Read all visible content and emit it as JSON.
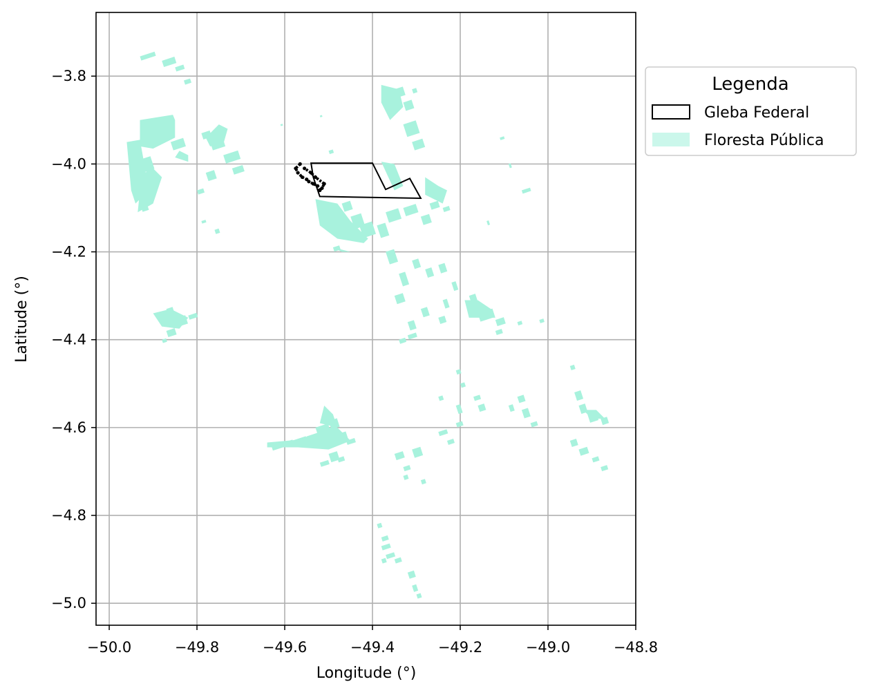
{
  "chart_data": {
    "type": "map",
    "xlabel": "Longitude (°)",
    "ylabel": "Latitude (°)",
    "xlim": [
      -50.03,
      -48.8
    ],
    "ylim": [
      -5.05,
      -3.655
    ],
    "xticks": [
      -50.0,
      -49.8,
      -49.6,
      -49.4,
      -49.2,
      -49.0,
      -48.8
    ],
    "xtick_labels": [
      "−50.0",
      "−49.8",
      "−49.6",
      "−49.4",
      "−49.2",
      "−49.0",
      "−48.8"
    ],
    "yticks": [
      -3.8,
      -4.0,
      -4.2,
      -4.4,
      -4.6,
      -4.8,
      -5.0
    ],
    "ytick_labels": [
      "−3.8",
      "−4.0",
      "−4.2",
      "−4.4",
      "−4.6",
      "−4.8",
      "−5.0"
    ],
    "grid": true,
    "legend": {
      "title": "Legenda",
      "placement": "outside-upper-right",
      "entries": [
        {
          "label": "Gleba Federal",
          "style": "outline",
          "edge_color": "#000000"
        },
        {
          "label": "Floresta Pública",
          "style": "fill",
          "fill_color": "#a8f2dd"
        }
      ]
    },
    "layers": {
      "gleba_federal": {
        "name": "Gleba Federal",
        "polygon": [
          [
            -49.54,
            -3.998
          ],
          [
            -49.4,
            -3.998
          ],
          [
            -49.37,
            -4.058
          ],
          [
            -49.315,
            -4.033
          ],
          [
            -49.3,
            -4.06
          ],
          [
            -49.29,
            -4.078
          ],
          [
            -49.52,
            -4.074
          ],
          [
            -49.535,
            -4.03
          ]
        ],
        "detail_cluster": [
          [
            -49.565,
            -4.0
          ],
          [
            -49.575,
            -4.01
          ],
          [
            -49.57,
            -4.02
          ],
          [
            -49.56,
            -4.03
          ],
          [
            -49.55,
            -4.035
          ],
          [
            -49.545,
            -4.04
          ],
          [
            -49.535,
            -4.045
          ],
          [
            -49.525,
            -4.05
          ],
          [
            -49.52,
            -4.06
          ],
          [
            -49.515,
            -4.055
          ],
          [
            -49.51,
            -4.045
          ],
          [
            -49.53,
            -4.03
          ],
          [
            -49.54,
            -4.02
          ],
          [
            -49.555,
            -4.01
          ]
        ]
      },
      "floresta_publica": {
        "name": "Floresta Pública",
        "patches": [
          [
            -49.93,
            -3.755,
            0.035,
            0.01
          ],
          [
            -49.88,
            -3.765,
            0.03,
            0.015
          ],
          [
            -49.85,
            -3.78,
            0.02,
            0.01
          ],
          [
            -49.83,
            -3.81,
            0.015,
            0.01
          ],
          [
            -49.89,
            -3.915,
            0.03,
            0.03
          ],
          [
            -49.86,
            -3.95,
            0.03,
            0.02
          ],
          [
            -49.93,
            -3.99,
            0.025,
            0.03
          ],
          [
            -49.94,
            -4.04,
            0.02,
            0.04
          ],
          [
            -49.93,
            -4.09,
            0.015,
            0.02
          ],
          [
            -49.79,
            -3.93,
            0.02,
            0.015
          ],
          [
            -49.77,
            -3.95,
            0.03,
            0.02
          ],
          [
            -49.74,
            -3.98,
            0.035,
            0.02
          ],
          [
            -49.72,
            -4.01,
            0.025,
            0.015
          ],
          [
            -49.78,
            -4.02,
            0.02,
            0.02
          ],
          [
            -49.8,
            -4.06,
            0.015,
            0.01
          ],
          [
            -49.79,
            -4.13,
            0.01,
            0.006
          ],
          [
            -49.76,
            -4.15,
            0.01,
            0.01
          ],
          [
            -49.87,
            -4.33,
            0.015,
            0.01
          ],
          [
            -49.86,
            -4.355,
            0.035,
            0.02
          ],
          [
            -49.87,
            -4.38,
            0.02,
            0.015
          ],
          [
            -49.82,
            -4.345,
            0.02,
            0.01
          ],
          [
            -49.88,
            -4.4,
            0.01,
            0.008
          ],
          [
            -49.35,
            -3.83,
            0.02,
            0.02
          ],
          [
            -49.36,
            -3.86,
            0.02,
            0.02
          ],
          [
            -49.33,
            -3.86,
            0.02,
            0.02
          ],
          [
            -49.31,
            -3.83,
            0.01,
            0.01
          ],
          [
            -49.33,
            -3.91,
            0.03,
            0.03
          ],
          [
            -49.31,
            -3.95,
            0.025,
            0.02
          ],
          [
            -49.5,
            -3.97,
            0.01,
            0.008
          ],
          [
            -49.47,
            -4.09,
            0.02,
            0.02
          ],
          [
            -49.45,
            -4.12,
            0.025,
            0.03
          ],
          [
            -49.43,
            -4.14,
            0.03,
            0.03
          ],
          [
            -49.39,
            -4.14,
            0.02,
            0.03
          ],
          [
            -49.37,
            -4.11,
            0.03,
            0.025
          ],
          [
            -49.33,
            -4.1,
            0.03,
            0.02
          ],
          [
            -49.29,
            -4.12,
            0.02,
            0.02
          ],
          [
            -49.27,
            -4.09,
            0.02,
            0.015
          ],
          [
            -49.24,
            -4.1,
            0.015,
            0.01
          ],
          [
            -49.49,
            -4.19,
            0.015,
            0.01
          ],
          [
            -49.37,
            -4.2,
            0.02,
            0.03
          ],
          [
            -49.34,
            -4.25,
            0.015,
            0.03
          ],
          [
            -49.31,
            -4.22,
            0.015,
            0.02
          ],
          [
            -49.28,
            -4.24,
            0.015,
            0.02
          ],
          [
            -49.25,
            -4.23,
            0.015,
            0.02
          ],
          [
            -49.22,
            -4.27,
            0.01,
            0.02
          ],
          [
            -49.35,
            -4.3,
            0.02,
            0.02
          ],
          [
            -49.32,
            -4.36,
            0.015,
            0.02
          ],
          [
            -49.29,
            -4.33,
            0.015,
            0.02
          ],
          [
            -49.32,
            -4.39,
            0.02,
            0.01
          ],
          [
            -49.34,
            -4.4,
            0.015,
            0.01
          ],
          [
            -49.24,
            -4.31,
            0.01,
            0.02
          ],
          [
            -49.18,
            -4.3,
            0.015,
            0.015
          ],
          [
            -49.25,
            -4.35,
            0.015,
            0.015
          ],
          [
            -49.16,
            -4.34,
            0.035,
            0.02
          ],
          [
            -49.12,
            -4.355,
            0.02,
            0.015
          ],
          [
            -49.12,
            -4.38,
            0.015,
            0.01
          ],
          [
            -49.07,
            -4.36,
            0.01,
            0.008
          ],
          [
            -49.02,
            -4.355,
            0.01,
            0.008
          ],
          [
            -49.21,
            -4.47,
            0.01,
            0.01
          ],
          [
            -49.2,
            -4.5,
            0.01,
            0.01
          ],
          [
            -49.17,
            -4.53,
            0.015,
            0.01
          ],
          [
            -49.16,
            -4.55,
            0.015,
            0.015
          ],
          [
            -49.21,
            -4.55,
            0.01,
            0.02
          ],
          [
            -49.21,
            -4.59,
            0.015,
            0.01
          ],
          [
            -49.25,
            -4.53,
            0.01,
            0.01
          ],
          [
            -49.09,
            -4.55,
            0.01,
            0.015
          ],
          [
            -49.07,
            -4.53,
            0.015,
            0.015
          ],
          [
            -49.06,
            -4.56,
            0.015,
            0.02
          ],
          [
            -49.04,
            -4.59,
            0.015,
            0.01
          ],
          [
            -48.95,
            -4.46,
            0.01,
            0.01
          ],
          [
            -48.94,
            -4.52,
            0.015,
            0.02
          ],
          [
            -48.93,
            -4.55,
            0.015,
            0.02
          ],
          [
            -48.91,
            -4.57,
            0.02,
            0.02
          ],
          [
            -48.88,
            -4.58,
            0.015,
            0.015
          ],
          [
            -48.95,
            -4.63,
            0.015,
            0.015
          ],
          [
            -48.93,
            -4.65,
            0.02,
            0.015
          ],
          [
            -48.9,
            -4.67,
            0.015,
            0.01
          ],
          [
            -48.88,
            -4.69,
            0.015,
            0.01
          ],
          [
            -49.25,
            -4.61,
            0.02,
            0.01
          ],
          [
            -49.23,
            -4.63,
            0.015,
            0.01
          ],
          [
            -49.63,
            -4.643,
            0.05,
            0.01
          ],
          [
            -49.59,
            -4.632,
            0.04,
            0.01
          ],
          [
            -49.55,
            -4.62,
            0.03,
            0.02
          ],
          [
            -49.53,
            -4.6,
            0.03,
            0.02
          ],
          [
            -49.5,
            -4.585,
            0.02,
            0.02
          ],
          [
            -49.48,
            -4.615,
            0.02,
            0.02
          ],
          [
            -49.46,
            -4.63,
            0.02,
            0.01
          ],
          [
            -49.5,
            -4.66,
            0.02,
            0.02
          ],
          [
            -49.52,
            -4.68,
            0.02,
            0.01
          ],
          [
            -49.48,
            -4.67,
            0.015,
            0.01
          ],
          [
            -49.35,
            -4.66,
            0.02,
            0.015
          ],
          [
            -49.33,
            -4.69,
            0.015,
            0.01
          ],
          [
            -49.31,
            -4.65,
            0.02,
            0.02
          ],
          [
            -49.33,
            -4.71,
            0.01,
            0.01
          ],
          [
            -49.29,
            -4.72,
            0.01,
            0.01
          ],
          [
            -49.39,
            -4.82,
            0.01,
            0.01
          ],
          [
            -49.38,
            -4.85,
            0.015,
            0.01
          ],
          [
            -49.38,
            -4.87,
            0.02,
            0.01
          ],
          [
            -49.37,
            -4.89,
            0.02,
            0.01
          ],
          [
            -49.35,
            -4.9,
            0.015,
            0.01
          ],
          [
            -49.38,
            -4.9,
            0.01,
            0.01
          ],
          [
            -49.32,
            -4.93,
            0.015,
            0.015
          ],
          [
            -49.31,
            -4.96,
            0.01,
            0.015
          ],
          [
            -49.3,
            -4.98,
            0.01,
            0.01
          ],
          [
            -49.61,
            -3.91,
            0.005,
            0.004
          ],
          [
            -49.52,
            -3.89,
            0.005,
            0.004
          ],
          [
            -49.11,
            -3.94,
            0.01,
            0.006
          ],
          [
            -49.09,
            -4.0,
            0.005,
            0.01
          ],
          [
            -49.06,
            -4.06,
            0.02,
            0.008
          ],
          [
            -49.14,
            -4.13,
            0.005,
            0.01
          ]
        ],
        "polygons": [
          [
            [
              -49.96,
              -3.95
            ],
            [
              -49.93,
              -3.945
            ],
            [
              -49.92,
              -4.0
            ],
            [
              -49.91,
              -4.06
            ],
            [
              -49.94,
              -4.09
            ],
            [
              -49.95,
              -4.06
            ]
          ],
          [
            [
              -49.93,
              -3.9
            ],
            [
              -49.855,
              -3.888
            ],
            [
              -49.85,
              -3.9
            ],
            [
              -49.85,
              -3.94
            ],
            [
              -49.9,
              -3.965
            ],
            [
              -49.93,
              -3.96
            ]
          ],
          [
            [
              -49.91,
              -4.0
            ],
            [
              -49.88,
              -4.03
            ],
            [
              -49.9,
              -4.09
            ],
            [
              -49.935,
              -4.11
            ],
            [
              -49.93,
              -4.06
            ]
          ],
          [
            [
              -49.75,
              -3.91
            ],
            [
              -49.73,
              -3.92
            ],
            [
              -49.74,
              -3.955
            ],
            [
              -49.77,
              -3.96
            ],
            [
              -49.78,
              -3.94
            ]
          ],
          [
            [
              -49.84,
              -3.97
            ],
            [
              -49.82,
              -3.98
            ],
            [
              -49.82,
              -3.995
            ],
            [
              -49.85,
              -3.985
            ]
          ],
          [
            [
              -49.9,
              -4.34
            ],
            [
              -49.86,
              -4.33
            ],
            [
              -49.82,
              -4.35
            ],
            [
              -49.84,
              -4.375
            ],
            [
              -49.88,
              -4.37
            ]
          ],
          [
            [
              -49.64,
              -4.634
            ],
            [
              -49.57,
              -4.628
            ],
            [
              -49.52,
              -4.61
            ],
            [
              -49.5,
              -4.6
            ],
            [
              -49.48,
              -4.6
            ],
            [
              -49.45,
              -4.63
            ],
            [
              -49.5,
              -4.65
            ],
            [
              -49.57,
              -4.645
            ],
            [
              -49.64,
              -4.645
            ]
          ],
          [
            [
              -49.51,
              -4.55
            ],
            [
              -49.49,
              -4.57
            ],
            [
              -49.48,
              -4.6
            ],
            [
              -49.52,
              -4.59
            ]
          ],
          [
            [
              -49.38,
              -3.82
            ],
            [
              -49.34,
              -3.83
            ],
            [
              -49.33,
              -3.87
            ],
            [
              -49.36,
              -3.9
            ],
            [
              -49.38,
              -3.86
            ]
          ],
          [
            [
              -49.38,
              -3.995
            ],
            [
              -49.35,
              -4.0
            ],
            [
              -49.33,
              -4.05
            ],
            [
              -49.35,
              -4.06
            ]
          ],
          [
            [
              -49.53,
              -4.08
            ],
            [
              -49.48,
              -4.09
            ],
            [
              -49.45,
              -4.13
            ],
            [
              -49.41,
              -4.17
            ],
            [
              -49.42,
              -4.18
            ],
            [
              -49.48,
              -4.17
            ],
            [
              -49.52,
              -4.14
            ]
          ],
          [
            [
              -49.49,
              -4.19
            ],
            [
              -49.45,
              -4.2
            ],
            [
              -49.47,
              -4.2
            ]
          ],
          [
            [
              -49.25,
              -4.05
            ],
            [
              -49.28,
              -4.03
            ],
            [
              -49.28,
              -4.07
            ],
            [
              -49.24,
              -4.09
            ],
            [
              -49.23,
              -4.06
            ]
          ],
          [
            [
              -49.19,
              -4.31
            ],
            [
              -49.16,
              -4.31
            ],
            [
              -49.13,
              -4.33
            ],
            [
              -49.12,
              -4.35
            ],
            [
              -49.18,
              -4.35
            ]
          ],
          [
            [
              -48.92,
              -4.56
            ],
            [
              -48.89,
              -4.56
            ],
            [
              -48.87,
              -4.58
            ],
            [
              -48.9,
              -4.58
            ]
          ]
        ]
      }
    }
  }
}
